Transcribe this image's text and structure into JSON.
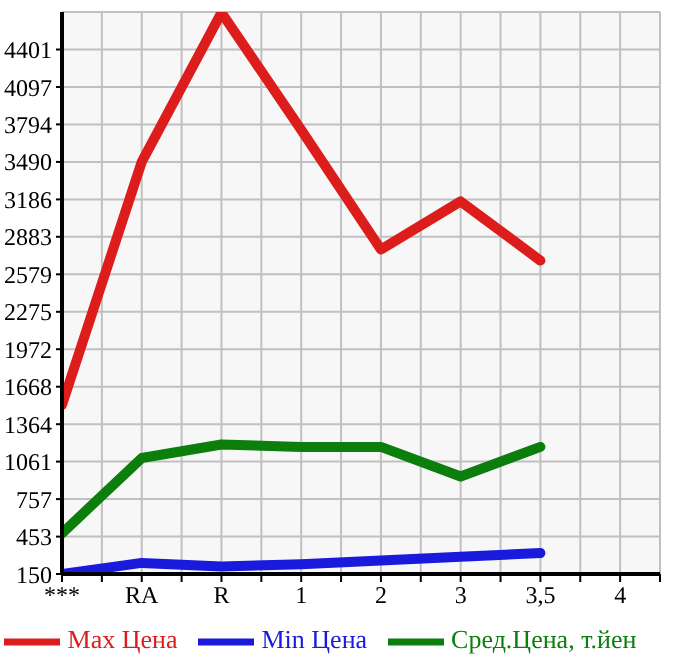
{
  "chart_data": {
    "type": "line",
    "categories": [
      "***",
      "RA",
      "R",
      "1",
      "2",
      "3",
      "3,5",
      "4"
    ],
    "series": [
      {
        "name": "Max Цена",
        "color": "#dd1c1c",
        "values": [
          1520,
          3490,
          4700,
          3750,
          2780,
          3170,
          2690,
          null
        ]
      },
      {
        "name": "Min Цена",
        "color": "#1a1adc",
        "values": [
          150,
          240,
          210,
          230,
          260,
          290,
          320,
          null
        ]
      },
      {
        "name": "Сред.Цена, т.йен",
        "color": "#0b7e0b",
        "values": [
          480,
          1090,
          1200,
          1180,
          1180,
          940,
          1180,
          null
        ]
      }
    ],
    "ylim": [
      150,
      4705
    ],
    "yticks": [
      150,
      453,
      757,
      1061,
      1364,
      1668,
      1972,
      2275,
      2579,
      2883,
      3186,
      3490,
      3794,
      4097,
      4401
    ],
    "grid": true,
    "legend": "bottom",
    "marker": "none",
    "line_style": "solid"
  }
}
